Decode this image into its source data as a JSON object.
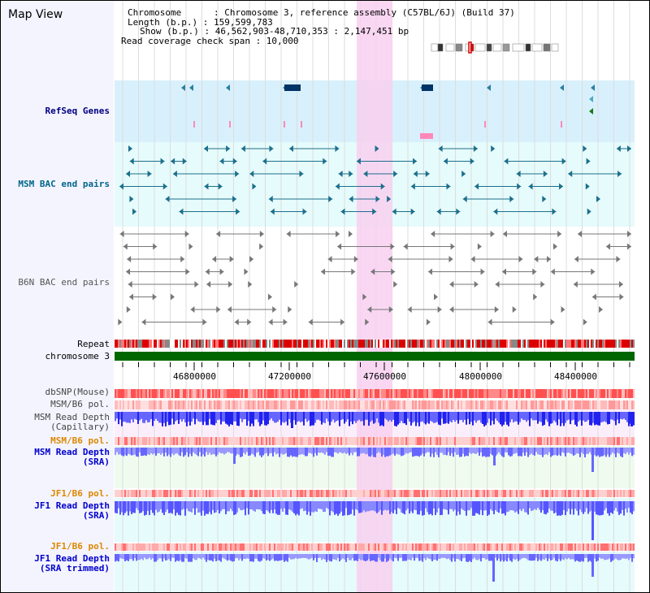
{
  "title": "Map View",
  "info": {
    "line1": "Chromosome      : Chromosome 3, reference assembly (C57BL/6J) (Build 37)",
    "line2": "Length (b.p.) : 159,599,783",
    "line3": "Show (b.p.) : 46,562,903-48,710,353 : 2,147,451 bp",
    "line4": "Read coverage check span : 10,000"
  },
  "tracks": {
    "refseq": "RefSeq Genes",
    "msm_bac": "MSM BAC end pairs",
    "b6n_bac": "B6N BAC end pairs",
    "repeat": "Repeat",
    "chromosome": "chromosome 3",
    "dbsnp": "dbSNP(Mouse)",
    "msm_pol1": "MSM/B6 pol.",
    "msm_depth_cap": "MSM Read Depth\n(Capillary)",
    "msm_pol2": "MSM/B6 pol.",
    "msm_depth_sra": "MSM Read Depth\n(SRA)",
    "jf1_pol1": "JF1/B6 pol.",
    "jf1_depth_sra": "JF1 Read Depth\n(SRA)",
    "jf1_pol2": "JF1/B6 pol.",
    "jf1_depth_trim": "JF1 Read Depth\n(SRA trimmed)"
  },
  "axis_ticks": [
    "46800000",
    "47200000",
    "47600000",
    "48000000",
    "48400000"
  ],
  "colors": {
    "navy_label": "#000080",
    "teal_label": "#006688",
    "gray_label": "#555555",
    "orange_label": "#dd8800",
    "blue_label": "#0000cc",
    "highlight": "#f8d0f0",
    "chromosome": "#006600",
    "repeat_red": "#dd0000"
  }
}
